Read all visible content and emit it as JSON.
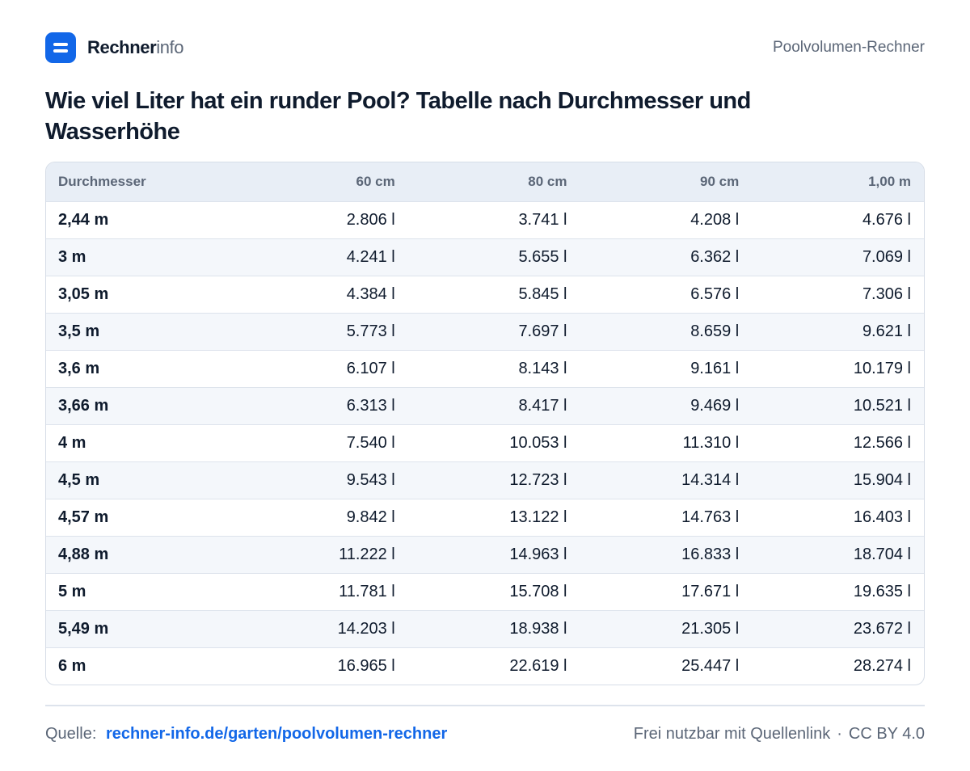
{
  "brand": {
    "name_strong": "Rechner",
    "name_light": "info"
  },
  "header": {
    "right_label": "Poolvolumen-Rechner"
  },
  "title": "Wie viel Liter hat ein runder Pool? Tabelle nach Durchmesser und Wasserhöhe",
  "table": {
    "headers": [
      "Durchmesser",
      "60 cm",
      "80 cm",
      "90 cm",
      "1,00 m"
    ],
    "rows": [
      [
        "2,44 m",
        "2.806 l",
        "3.741 l",
        "4.208 l",
        "4.676 l"
      ],
      [
        "3 m",
        "4.241 l",
        "5.655 l",
        "6.362 l",
        "7.069 l"
      ],
      [
        "3,05 m",
        "4.384 l",
        "5.845 l",
        "6.576 l",
        "7.306 l"
      ],
      [
        "3,5 m",
        "5.773 l",
        "7.697 l",
        "8.659 l",
        "9.621 l"
      ],
      [
        "3,6 m",
        "6.107 l",
        "8.143 l",
        "9.161 l",
        "10.179 l"
      ],
      [
        "3,66 m",
        "6.313 l",
        "8.417 l",
        "9.469 l",
        "10.521 l"
      ],
      [
        "4 m",
        "7.540 l",
        "10.053 l",
        "11.310 l",
        "12.566 l"
      ],
      [
        "4,5 m",
        "9.543 l",
        "12.723 l",
        "14.314 l",
        "15.904 l"
      ],
      [
        "4,57 m",
        "9.842 l",
        "13.122 l",
        "14.763 l",
        "16.403 l"
      ],
      [
        "4,88 m",
        "11.222 l",
        "14.963 l",
        "16.833 l",
        "18.704 l"
      ],
      [
        "5 m",
        "11.781 l",
        "15.708 l",
        "17.671 l",
        "19.635 l"
      ],
      [
        "5,49 m",
        "14.203 l",
        "18.938 l",
        "21.305 l",
        "23.672 l"
      ],
      [
        "6 m",
        "16.965 l",
        "22.619 l",
        "25.447 l",
        "28.274 l"
      ]
    ]
  },
  "footer": {
    "source_label": "Quelle:",
    "source_link": "rechner-info.de/garten/poolvolumen-rechner",
    "license_text": "Frei nutzbar mit Quellenlink",
    "separator": "·",
    "license": "CC BY 4.0"
  },
  "colors": {
    "accent": "#1267e8",
    "text": "#0f1b2d",
    "muted": "#5b6677",
    "header_bg": "#e8eef6",
    "stripe": "#f4f7fb"
  },
  "icons": {
    "logo": "equals-logo-icon"
  }
}
